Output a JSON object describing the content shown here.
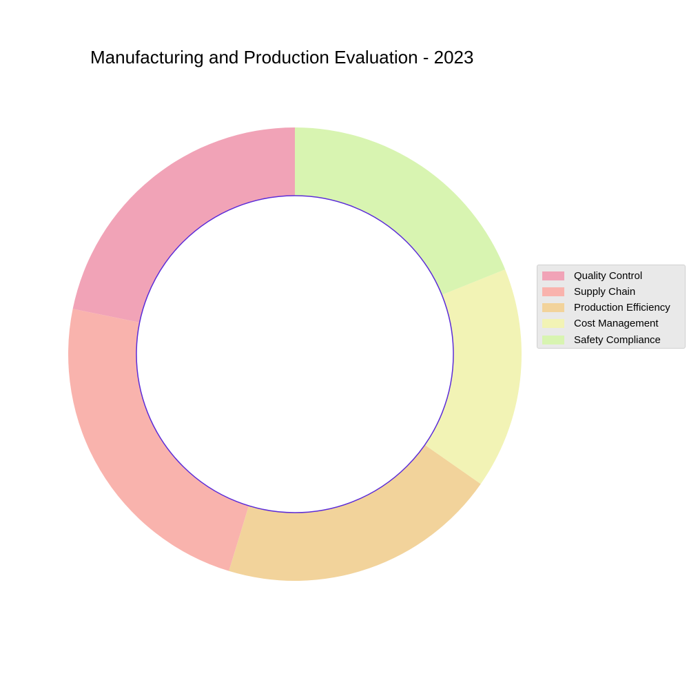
{
  "chart_data": {
    "type": "pie",
    "style": "donut",
    "title": "Manufacturing and Production Evaluation - 2023",
    "categories": [
      "Quality Control",
      "Supply Chain",
      "Production Efficiency",
      "Cost Management",
      "Safety Compliance"
    ],
    "values": [
      21.8,
      23.5,
      20.0,
      15.8,
      18.9
    ],
    "colors": [
      "#f1a3b7",
      "#f9b3ad",
      "#f2d39b",
      "#f2f3b5",
      "#d8f4b1"
    ],
    "inner_edge_color": "#5b2bd8",
    "start_angle_deg": 90,
    "direction": "counterclockwise",
    "legend": {
      "position": "right"
    }
  }
}
